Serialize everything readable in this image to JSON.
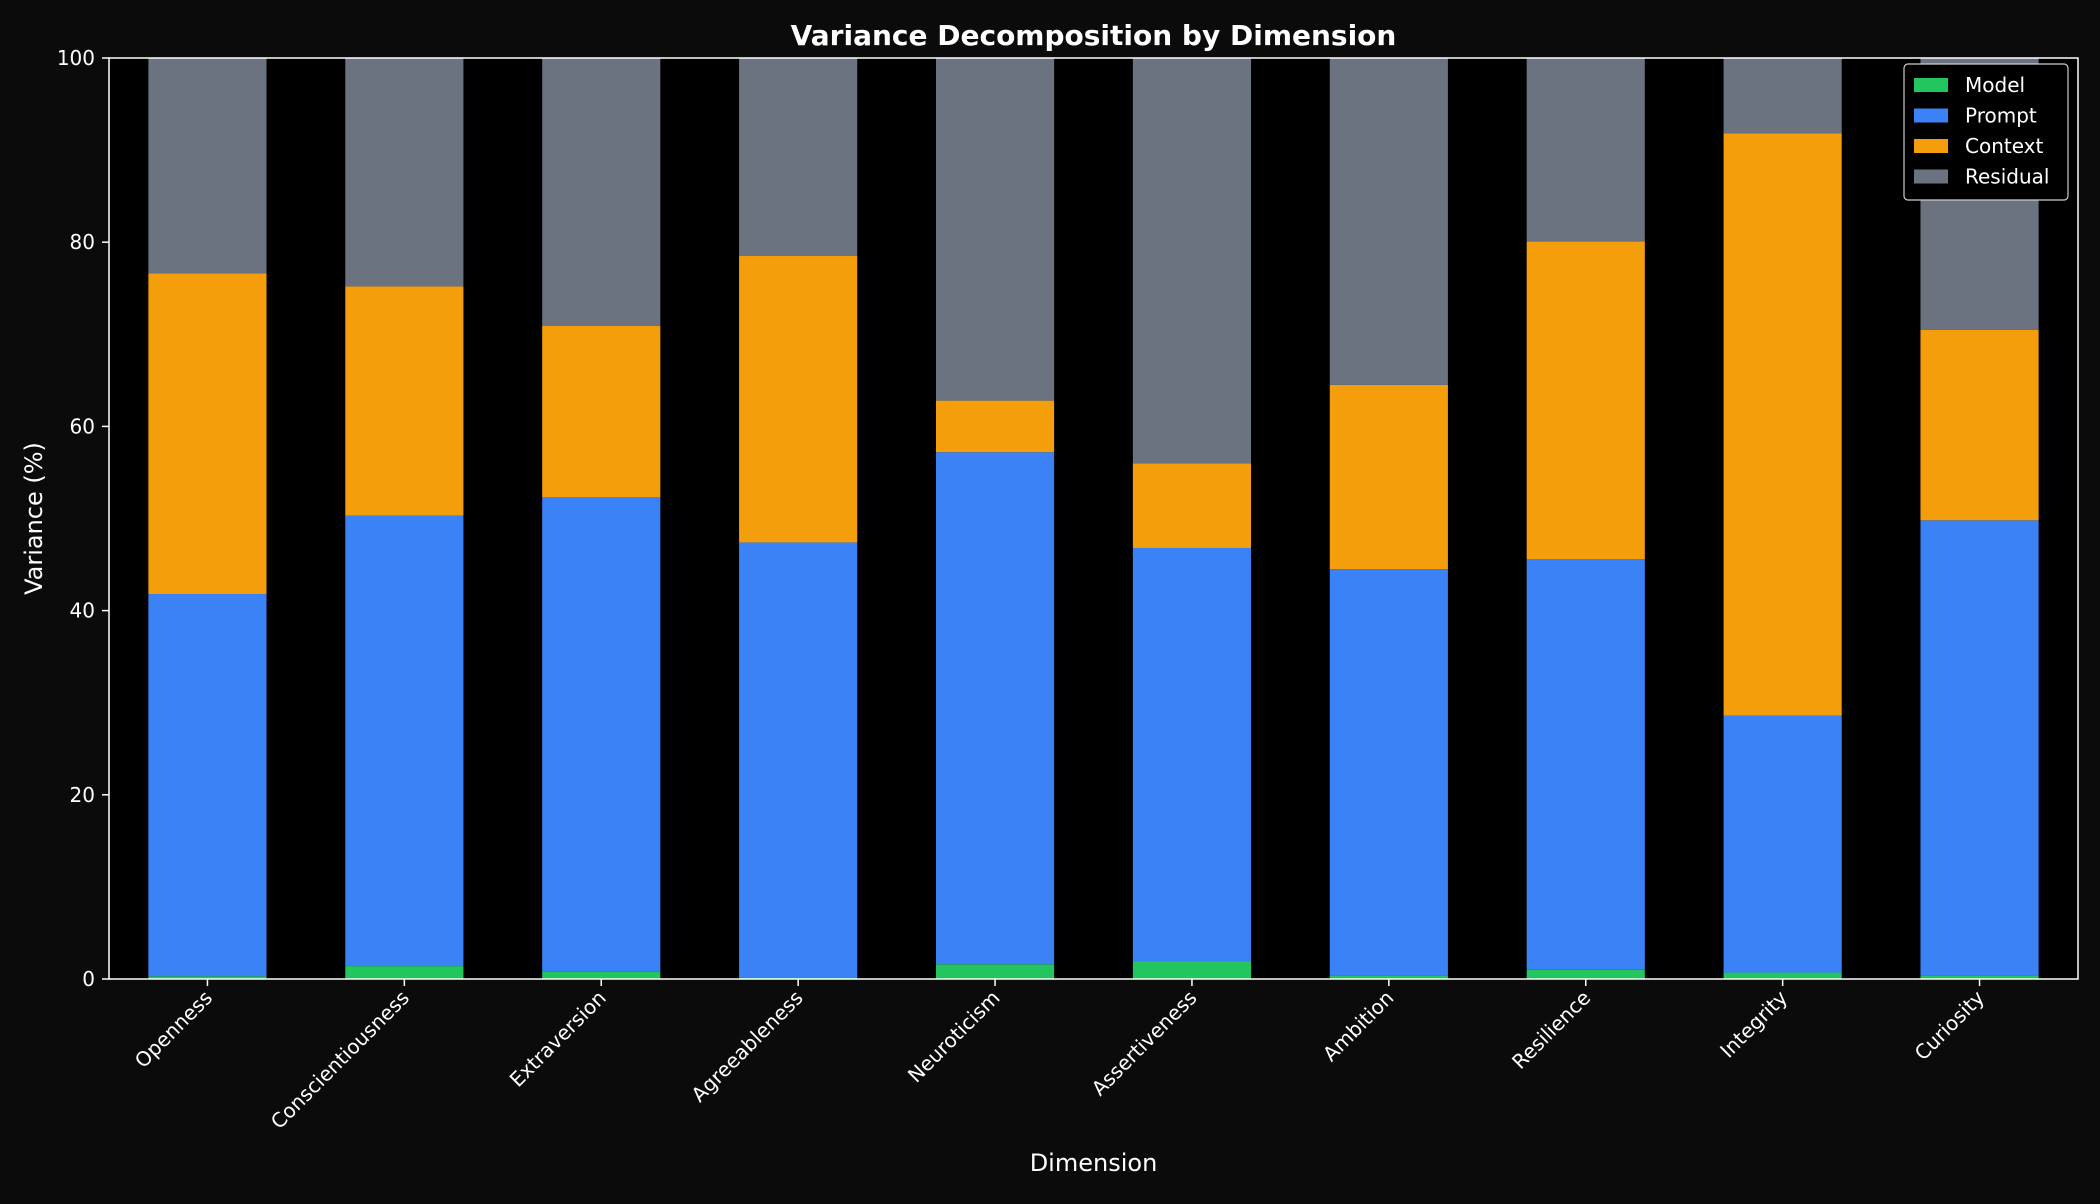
{
  "chart_data": {
    "type": "bar",
    "stacked": true,
    "title": "Variance Decomposition by Dimension",
    "xlabel": "Dimension",
    "ylabel": "Variance (%)",
    "ylim": [
      0,
      100
    ],
    "yticks": [
      0,
      20,
      40,
      60,
      80,
      100
    ],
    "grid": false,
    "legend_position": "top-right",
    "categories": [
      "Openness",
      "Conscientiousness",
      "Extraversion",
      "Agreeableness",
      "Neuroticism",
      "Assertiveness",
      "Ambition",
      "Resilience",
      "Integrity",
      "Curiosity"
    ],
    "series": [
      {
        "name": "Model",
        "color": "#22c55e",
        "values": [
          0.3,
          1.4,
          0.8,
          0.2,
          1.6,
          1.9,
          0.4,
          1.0,
          0.7,
          0.4
        ]
      },
      {
        "name": "Prompt",
        "color": "#3b82f6",
        "values": [
          41.5,
          48.9,
          51.5,
          47.2,
          55.6,
          44.9,
          44.1,
          44.6,
          27.9,
          49.4
        ]
      },
      {
        "name": "Context",
        "color": "#f59e0b",
        "values": [
          34.8,
          24.9,
          18.6,
          31.1,
          5.6,
          9.2,
          20.0,
          34.5,
          63.2,
          20.7
        ]
      },
      {
        "name": "Residual",
        "color": "#6b7280",
        "values": [
          23.4,
          24.8,
          29.1,
          21.5,
          37.2,
          44.0,
          35.5,
          19.9,
          8.2,
          29.5
        ]
      }
    ]
  }
}
